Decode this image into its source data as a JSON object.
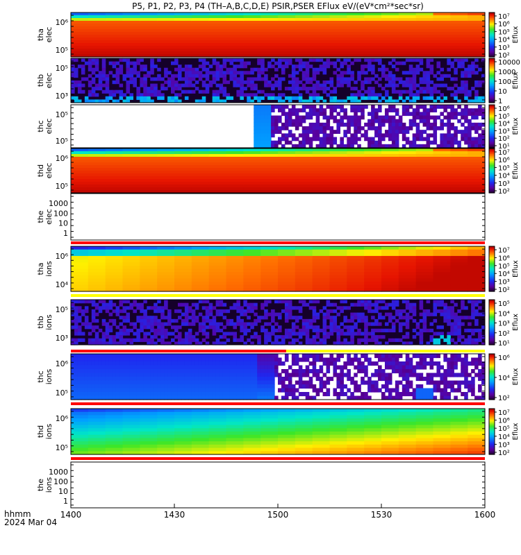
{
  "chart_data": {
    "type": "heatmap",
    "title": "P5, P1, P2, P3, P4 (TH–A,B,C,D,E) PSIR,PSER EFlux eV/(eV*cm²*sec*sr)",
    "x_label_line1": "hhmm",
    "x_label_line2": "2024 Mar 04",
    "x_ticks": [
      "1400",
      "1430",
      "1500",
      "1530",
      "1600"
    ],
    "x_range": [
      "1400",
      "1600"
    ],
    "panels": [
      {
        "id": "tha_elec",
        "ylabel": [
          "tha",
          "elec"
        ],
        "yticks": [
          "10⁶",
          "10⁵"
        ],
        "cbar_label": "Eflux",
        "cbar_ticks": [
          "10⁷",
          "10⁶",
          "10⁵",
          "10⁴",
          "10³",
          "10²"
        ],
        "kind": "dense"
      },
      {
        "id": "thb_elec",
        "ylabel": [
          "thb",
          "elec"
        ],
        "yticks": [
          "10⁵",
          "10³"
        ],
        "cbar_label": "Eflux",
        "cbar_ticks": [
          "10000",
          "1000",
          "100",
          "10",
          "1"
        ],
        "kind": "noise"
      },
      {
        "id": "thc_elec",
        "ylabel": [
          "thc",
          "elec"
        ],
        "yticks": [
          "10⁵",
          "10⁵"
        ],
        "cbar_label": "Eflux",
        "cbar_ticks": [
          "10⁶",
          "10⁵",
          "10⁴",
          "10³",
          "10²",
          "10¹"
        ],
        "kind": "gap"
      },
      {
        "id": "thd_elec",
        "ylabel": [
          "thd",
          "elec"
        ],
        "yticks": [
          "10⁶",
          "10⁵"
        ],
        "cbar_label": "Eflux",
        "cbar_ticks": [
          "10⁷",
          "10⁶",
          "10⁵",
          "10⁴",
          "10³",
          "10²"
        ],
        "kind": "dense"
      },
      {
        "id": "the_elec",
        "ylabel": [
          "the",
          "elec"
        ],
        "yticks": [
          "1000",
          "100",
          "10",
          "1"
        ],
        "cbar_label": "",
        "cbar_ticks": [],
        "kind": "empty"
      },
      {
        "id": "tha_ions",
        "ylabel": [
          "tha",
          "ions"
        ],
        "yticks": [
          "10⁶",
          "10⁴"
        ],
        "cbar_label": "Eflux",
        "cbar_ticks": [
          "10⁷",
          "10⁶",
          "10⁵",
          "10⁴",
          "10³",
          "10²"
        ],
        "kind": "ions"
      },
      {
        "id": "thb_ions",
        "ylabel": [
          "thb",
          "ions"
        ],
        "yticks": [
          "10⁵",
          "10³"
        ],
        "cbar_label": "Eflux",
        "cbar_ticks": [
          "10⁵",
          "10⁴",
          "10³",
          "10²",
          "10¹"
        ],
        "kind": "noise_ions"
      },
      {
        "id": "thc_ions",
        "ylabel": [
          "thc",
          "ions"
        ],
        "yticks": [
          "10⁶",
          "10⁵"
        ],
        "cbar_label": "Eflux",
        "cbar_ticks": [
          "10⁶",
          "10⁴",
          "10²"
        ],
        "kind": "ions_c"
      },
      {
        "id": "thd_ions",
        "ylabel": [
          "thd",
          "ions"
        ],
        "yticks": [
          "10⁶",
          "10⁵"
        ],
        "cbar_label": "Eflux",
        "cbar_ticks": [
          "10⁷",
          "10⁶",
          "10⁵",
          "10⁴",
          "10³",
          "10²"
        ],
        "kind": "ions_d"
      },
      {
        "id": "the_ions",
        "ylabel": [
          "the",
          "ions"
        ],
        "yticks": [
          "1000",
          "100",
          "10",
          "1"
        ],
        "cbar_label": "",
        "cbar_ticks": [],
        "kind": "empty"
      }
    ]
  }
}
